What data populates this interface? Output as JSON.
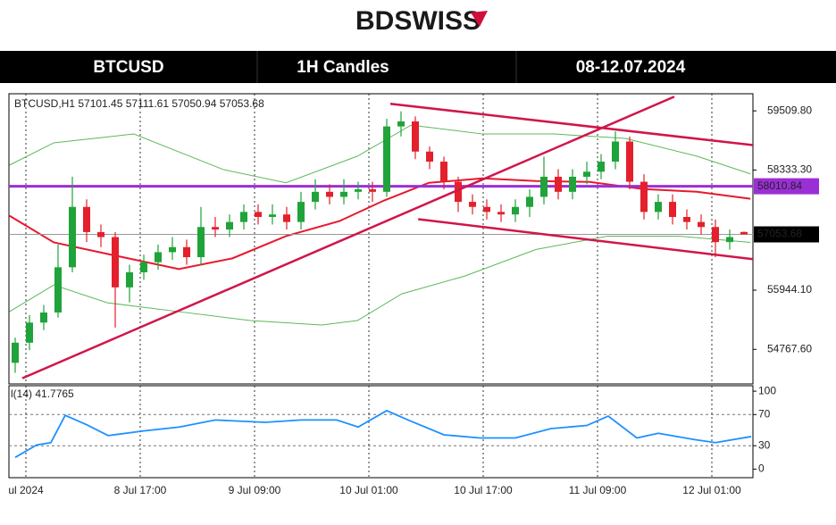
{
  "header": {
    "logo": "BDSWISS",
    "symbol": "BTCUSD",
    "timeframe": "1H Candles",
    "dates": "08-12.07.2024"
  },
  "chart_data": [
    {
      "type": "candlestick",
      "info": "BTCUSD,H1  57101.45 57111.61 57050.94 57053.68",
      "x": [
        0,
        2,
        4,
        6,
        8,
        10,
        12,
        14,
        16,
        18,
        20,
        22,
        24,
        26,
        28,
        30,
        32,
        34,
        36,
        38,
        40,
        42,
        44,
        46,
        48,
        50,
        52,
        54,
        56,
        58,
        60,
        62,
        64,
        66,
        68,
        70,
        72,
        74,
        76,
        78,
        80,
        82,
        84,
        86,
        88,
        90,
        92,
        94,
        96,
        98,
        100,
        102
      ],
      "open": [
        54500,
        54900,
        55300,
        55500,
        56400,
        57600,
        57100,
        57000,
        56000,
        56300,
        56500,
        56700,
        56800,
        56600,
        57200,
        57150,
        57300,
        57500,
        57400,
        57450,
        57300,
        57700,
        57900,
        57800,
        57900,
        57950,
        57900,
        59200,
        59300,
        58700,
        58500,
        58100,
        57700,
        57600,
        57500,
        57450,
        57600,
        57800,
        58200,
        57900,
        58200,
        58300,
        58500,
        58900,
        58100,
        57500,
        57700,
        57400,
        57300,
        57200,
        56900,
        57101.45
      ],
      "high": [
        55000,
        55450,
        55650,
        56850,
        58200,
        57750,
        57250,
        57100,
        56450,
        56650,
        56850,
        57000,
        56950,
        57600,
        57400,
        57450,
        57650,
        57650,
        57650,
        57600,
        57900,
        58150,
        58050,
        58150,
        58100,
        58100,
        59350,
        59500,
        59400,
        58800,
        58600,
        58200,
        57850,
        57750,
        57650,
        57750,
        57950,
        58600,
        58350,
        58350,
        58500,
        58650,
        59100,
        59000,
        58250,
        57850,
        57850,
        57550,
        57450,
        57350,
        57150,
        57111.61
      ],
      "low": [
        54300,
        54750,
        55150,
        55400,
        56300,
        56900,
        56800,
        55200,
        55700,
        56150,
        56350,
        56550,
        56450,
        56450,
        57000,
        57000,
        57150,
        57250,
        57250,
        57150,
        57150,
        57550,
        57650,
        57650,
        57750,
        57700,
        57800,
        59000,
        58550,
        58350,
        57950,
        57500,
        57450,
        57350,
        57300,
        57300,
        57400,
        57650,
        57750,
        57750,
        58050,
        58150,
        58350,
        57950,
        57350,
        57350,
        57250,
        57150,
        57050,
        56600,
        56750,
        57050.94
      ],
      "close": [
        54900,
        55300,
        55500,
        56400,
        57600,
        57100,
        57000,
        56000,
        56300,
        56500,
        56700,
        56800,
        56600,
        57200,
        57150,
        57300,
        57500,
        57400,
        57450,
        57300,
        57700,
        57900,
        57800,
        57900,
        57950,
        57900,
        59200,
        59300,
        58700,
        58500,
        58100,
        57700,
        57600,
        57500,
        57450,
        57600,
        57800,
        58200,
        57900,
        58200,
        58300,
        58500,
        58900,
        58100,
        57500,
        57700,
        57400,
        57300,
        57200,
        56900,
        57000,
        57053.68
      ],
      "up_color": "#1fa33a",
      "down_color": "#e3202c",
      "xlim": [
        -0.875,
        103.25
      ],
      "ylim": [
        54080,
        59850
      ],
      "yticks": [
        {
          "value": 59509.8,
          "label": "59509.80"
        },
        {
          "value": 58333.3,
          "label": "58333.30"
        },
        {
          "value": 55944.1,
          "label": "55944.10"
        },
        {
          "value": 54767.6,
          "label": "54767.60"
        }
      ],
      "xticks": [
        {
          "value": 1.5,
          "label": "ul 2024"
        },
        {
          "value": 17.5,
          "label": "8 Jul 17:00"
        },
        {
          "value": 33.5,
          "label": "9 Jul 09:00"
        },
        {
          "value": 49.5,
          "label": "10 Jul 01:00"
        },
        {
          "value": 65.5,
          "label": "10 Jul 17:00"
        },
        {
          "value": 81.5,
          "label": "11 Jul 09:00"
        },
        {
          "value": 97.5,
          "label": "12 Jul 01:00"
        }
      ],
      "levels": [
        {
          "value": 58010.84,
          "label": "58010.84",
          "color": "#9b2fd6"
        },
        {
          "value": 57053.68,
          "label": "57053.68",
          "color": "#000000"
        }
      ],
      "overlays": [
        {
          "color": "#e8182e",
          "x": [
            -0.8,
            5.4,
            12.9,
            22.9,
            30.4,
            37.9,
            45.4,
            51.6,
            57.9,
            65.4,
            72.9,
            80.4,
            87.9,
            95.4,
            102.9
          ],
          "y": [
            57425,
            56895,
            56665,
            56365,
            56577,
            57019,
            57319,
            57726,
            58079,
            58167,
            58114,
            58097,
            57955,
            57902,
            57761
          ]
        },
        {
          "color": "#5cb85c",
          "x": [
            -0.8,
            5.4,
            16.6,
            29.1,
            37.9,
            47.9,
            55.4,
            65.4,
            75.4,
            85.4,
            95.4,
            102.9
          ],
          "y": [
            58432,
            58874,
            59050,
            58344,
            58079,
            58609,
            59227,
            59050,
            59050,
            58962,
            58609,
            58256
          ]
        },
        {
          "color": "#5cb85c",
          "x": [
            -0.8,
            5.4,
            12.9,
            22.9,
            32.9,
            42.9,
            47.9,
            54.1,
            62.9,
            72.9,
            82.9,
            92.9,
            102.9
          ],
          "y": [
            55517,
            56047,
            55694,
            55517,
            55340,
            55252,
            55340,
            55871,
            56224,
            56754,
            57019,
            57019,
            56895
          ]
        }
      ],
      "trendlines": [
        {
          "color": "#d0164a",
          "x": [
            1,
            92.25
          ],
          "y": [
            54193,
            59792
          ]
        },
        {
          "color": "#d0164a",
          "x": [
            52.5,
            103.25
          ],
          "y": [
            59651,
            58828
          ]
        },
        {
          "color": "#d0164a",
          "x": [
            56.4,
            103.25
          ],
          "y": [
            57355,
            56560
          ]
        }
      ]
    },
    {
      "type": "line",
      "title": "l(14) 41.7765",
      "color": "#1e90ff",
      "x": [
        0,
        3,
        5,
        7,
        10,
        13,
        18,
        23,
        28,
        35,
        40,
        45,
        48,
        52,
        55,
        60,
        65,
        70,
        75,
        80,
        83,
        87,
        90,
        95,
        98,
        103
      ],
      "values": [
        15,
        31,
        34,
        69,
        57,
        43,
        49,
        54,
        63,
        60,
        63,
        63,
        54,
        75,
        63,
        44,
        40,
        40,
        52,
        56,
        68,
        40,
        46,
        38,
        34,
        41.7765
      ],
      "ylim": [
        -11,
        107
      ],
      "yticks": [
        100,
        70,
        30,
        0
      ],
      "levels": [
        70,
        30
      ]
    }
  ]
}
